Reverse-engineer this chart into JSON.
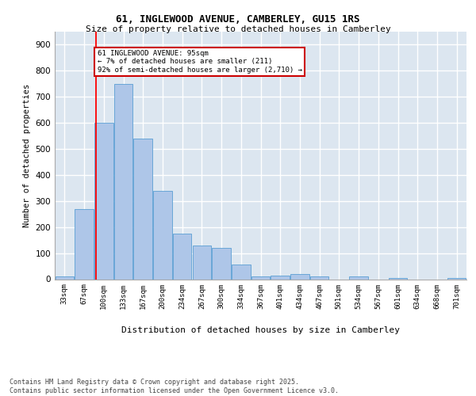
{
  "title1": "61, INGLEWOOD AVENUE, CAMBERLEY, GU15 1RS",
  "title2": "Size of property relative to detached houses in Camberley",
  "xlabel": "Distribution of detached houses by size in Camberley",
  "ylabel": "Number of detached properties",
  "categories": [
    "33sqm",
    "67sqm",
    "100sqm",
    "133sqm",
    "167sqm",
    "200sqm",
    "234sqm",
    "267sqm",
    "300sqm",
    "334sqm",
    "367sqm",
    "401sqm",
    "434sqm",
    "467sqm",
    "501sqm",
    "534sqm",
    "567sqm",
    "601sqm",
    "634sqm",
    "668sqm",
    "701sqm"
  ],
  "values": [
    10,
    270,
    600,
    750,
    540,
    340,
    175,
    130,
    120,
    55,
    10,
    15,
    20,
    12,
    0,
    10,
    0,
    5,
    0,
    0,
    5
  ],
  "bar_color": "#aec6e8",
  "bar_edge_color": "#5a9fd4",
  "background_color": "#dce6f0",
  "grid_color": "#ffffff",
  "red_line_x": 1.62,
  "annotation_text": "61 INGLEWOOD AVENUE: 95sqm\n← 7% of detached houses are smaller (211)\n92% of semi-detached houses are larger (2,710) →",
  "annotation_box_color": "#ffffff",
  "annotation_box_edge": "#cc0000",
  "footnote": "Contains HM Land Registry data © Crown copyright and database right 2025.\nContains public sector information licensed under the Open Government Licence v3.0.",
  "ylim": [
    0,
    950
  ],
  "yticks": [
    0,
    100,
    200,
    300,
    400,
    500,
    600,
    700,
    800,
    900
  ]
}
